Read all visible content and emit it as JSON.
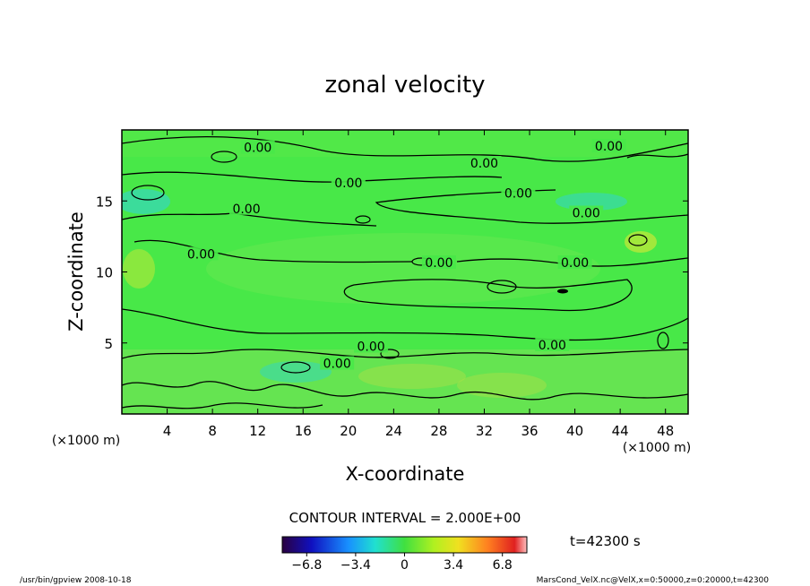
{
  "chart_data": {
    "type": "heatmap",
    "title": "zonal velocity",
    "xlabel": "X-coordinate",
    "ylabel": "Z-coordinate",
    "x_unit_left": "(×1000 m)",
    "x_unit_right": "(×1000 m)",
    "xlim": [
      0,
      50
    ],
    "ylim": [
      0,
      20
    ],
    "x_ticks": [
      4,
      8,
      12,
      16,
      20,
      24,
      28,
      32,
      36,
      40,
      44,
      48
    ],
    "y_ticks": [
      5,
      10,
      15
    ],
    "contour_interval_text": "CONTOUR INTERVAL = 2.000E+00",
    "time_text": "t=42300  s",
    "colorbar": {
      "range": [
        -8.5,
        8.5
      ],
      "ticks": [
        -6.8,
        -3.4,
        0,
        3.4,
        6.8
      ],
      "tick_labels": [
        "−6.8",
        "−3.4",
        "0",
        "3.4",
        "6.8"
      ]
    },
    "contour_labels": [
      {
        "x": 12,
        "z": 18.7,
        "text": "0.00"
      },
      {
        "x": 20,
        "z": 16.2,
        "text": "0.00"
      },
      {
        "x": 11,
        "z": 14.4,
        "text": "0.00"
      },
      {
        "x": 7,
        "z": 11.2,
        "text": "0.00"
      },
      {
        "x": 28,
        "z": 10.6,
        "text": "0.00"
      },
      {
        "x": 32,
        "z": 17.6,
        "text": "0.00"
      },
      {
        "x": 35,
        "z": 15.5,
        "text": "0.00"
      },
      {
        "x": 43,
        "z": 18.8,
        "text": "0.00"
      },
      {
        "x": 41,
        "z": 14.1,
        "text": "0.00"
      },
      {
        "x": 40,
        "z": 10.6,
        "text": "0.00"
      },
      {
        "x": 22,
        "z": 4.7,
        "text": "0.00"
      },
      {
        "x": 19,
        "z": 3.5,
        "text": "0.00"
      },
      {
        "x": 38,
        "z": 4.8,
        "text": "0.00"
      }
    ],
    "footer_left": "/usr/bin/gpview   2008-10-18",
    "footer_right": "MarsCond_VelX.nc@VelX,x=0:50000,z=0:20000,t=42300"
  }
}
